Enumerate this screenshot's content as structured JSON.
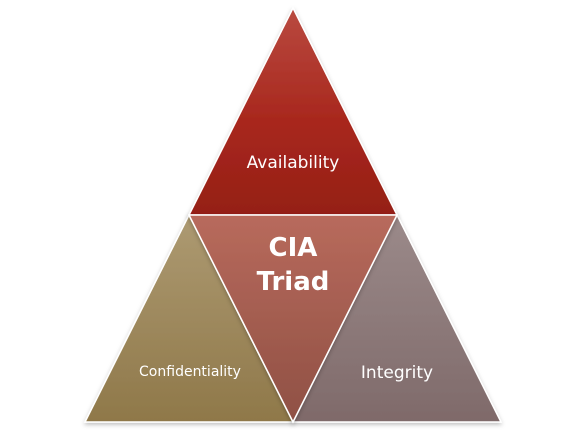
{
  "triad": {
    "center_line1": "CIA",
    "center_line2": "Triad",
    "top": "Availability",
    "left": "Confidentiality",
    "right": "Integrity"
  },
  "colors": {
    "availability": "#a8271d",
    "confidentiality": "#9c8658",
    "integrity": "#8a7878",
    "center": "#9e5a4e"
  }
}
